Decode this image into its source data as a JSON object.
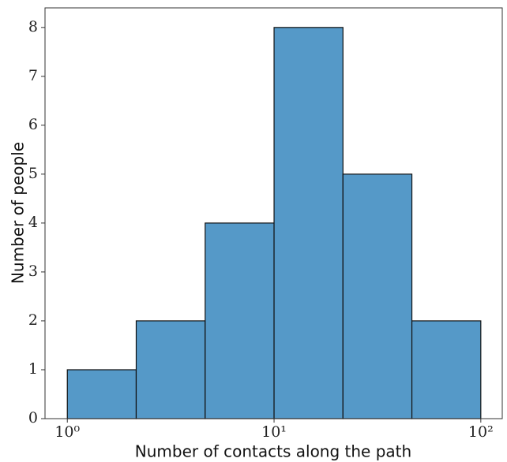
{
  "chart_data": {
    "type": "histogram",
    "xlabel": "Number of contacts along the path",
    "ylabel": "Number of people",
    "bins": [
      1,
      2.154,
      4.642,
      10,
      21.544,
      46.416,
      100
    ],
    "values": [
      1,
      2,
      4,
      8,
      5,
      2
    ],
    "color": "#5599c8",
    "xscale": "log",
    "xlim": [
      0.78,
      127
    ],
    "xticks": [
      {
        "value": 1,
        "label": "10⁰"
      },
      {
        "value": 10,
        "label": "10¹"
      },
      {
        "value": 100,
        "label": "10²"
      }
    ],
    "ylim": [
      0,
      8.4
    ],
    "yticks": [
      0,
      1,
      2,
      3,
      4,
      5,
      6,
      7,
      8
    ]
  }
}
